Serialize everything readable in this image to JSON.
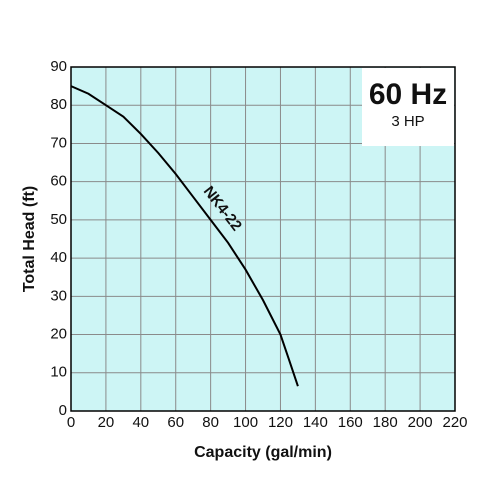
{
  "chart_data": {
    "type": "line",
    "x_label": "Capacity (gal/min)",
    "y_label": "Total Head (ft)",
    "x": [
      0,
      10,
      20,
      30,
      40,
      50,
      60,
      70,
      80,
      90,
      100,
      110,
      120,
      125,
      130
    ],
    "series": [
      {
        "name": "NK4-22",
        "color": "#000000",
        "values": [
          85,
          83,
          80,
          77,
          72.5,
          67.5,
          62,
          56,
          50,
          44,
          37,
          29,
          20,
          13.3,
          6.5
        ]
      }
    ],
    "xlim": [
      0,
      220
    ],
    "xticks": [
      0,
      20,
      40,
      60,
      80,
      100,
      120,
      140,
      160,
      180,
      200,
      220
    ],
    "ylim": [
      0,
      90
    ],
    "yticks": [
      0,
      10,
      20,
      30,
      40,
      50,
      60,
      70,
      80,
      90
    ],
    "grid": true,
    "background": "#cdf5f5",
    "annotations": [
      {
        "text": "60 Hz"
      },
      {
        "text": "3 HP"
      }
    ]
  }
}
